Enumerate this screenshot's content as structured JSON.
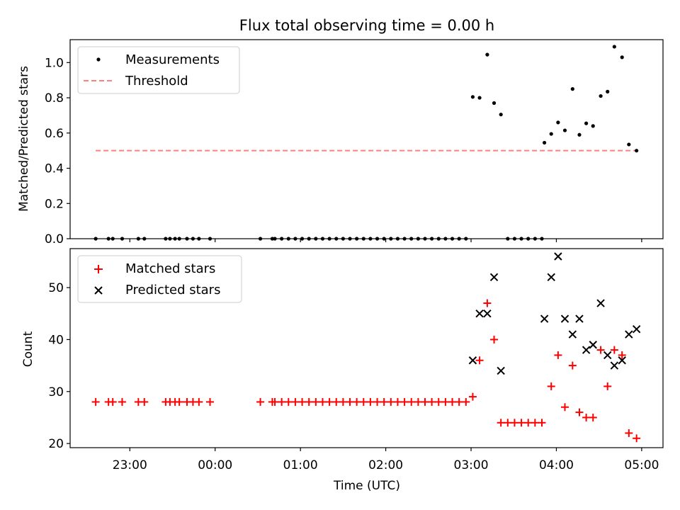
{
  "chart_data": [
    {
      "type": "scatter",
      "title": "Flux total observing time = 0.00 h",
      "xlabel": "",
      "ylabel": "Matched/Predicted stars",
      "ylim": [
        0.0,
        1.13
      ],
      "yticks": [
        "0.0",
        "0.2",
        "0.4",
        "0.6",
        "0.8",
        "1.0"
      ],
      "ytick_values": [
        0.0,
        0.2,
        0.4,
        0.6,
        0.8,
        1.0
      ],
      "legend_position": "upper-left",
      "series": [
        {
          "name": "Measurements",
          "marker": "dot",
          "color": "#000000",
          "points": [
            [
              -1.4,
              0
            ],
            [
              -1.25,
              0
            ],
            [
              -1.2,
              0
            ],
            [
              -1.09,
              0
            ],
            [
              -0.9,
              0
            ],
            [
              -0.83,
              0
            ],
            [
              -0.58,
              0
            ],
            [
              -0.53,
              0
            ],
            [
              -0.47,
              0
            ],
            [
              -0.42,
              0
            ],
            [
              -0.33,
              0
            ],
            [
              -0.26,
              0
            ],
            [
              -0.19,
              0
            ],
            [
              -0.06,
              0
            ],
            [
              0.53,
              0
            ],
            [
              0.67,
              0
            ],
            [
              0.7,
              0
            ],
            [
              0.78,
              0
            ],
            [
              0.86,
              0
            ],
            [
              0.94,
              0
            ],
            [
              1.02,
              0
            ],
            [
              1.1,
              0
            ],
            [
              1.18,
              0
            ],
            [
              1.26,
              0
            ],
            [
              1.34,
              0
            ],
            [
              1.42,
              0
            ],
            [
              1.5,
              0
            ],
            [
              1.58,
              0
            ],
            [
              1.66,
              0
            ],
            [
              1.74,
              0
            ],
            [
              1.82,
              0
            ],
            [
              1.9,
              0
            ],
            [
              1.98,
              0
            ],
            [
              2.06,
              0
            ],
            [
              2.14,
              0
            ],
            [
              2.22,
              0
            ],
            [
              2.3,
              0
            ],
            [
              2.38,
              0
            ],
            [
              2.46,
              0
            ],
            [
              2.54,
              0
            ],
            [
              2.62,
              0
            ],
            [
              2.7,
              0
            ],
            [
              2.78,
              0
            ],
            [
              2.86,
              0
            ],
            [
              2.94,
              0
            ],
            [
              3.02,
              0.805
            ],
            [
              3.1,
              0.8
            ],
            [
              3.19,
              1.045
            ],
            [
              3.27,
              0.77
            ],
            [
              3.35,
              0.705
            ],
            [
              3.43,
              0
            ],
            [
              3.51,
              0
            ],
            [
              3.59,
              0
            ],
            [
              3.67,
              0
            ],
            [
              3.75,
              0
            ],
            [
              3.83,
              0
            ],
            [
              3.86,
              0.545
            ],
            [
              3.94,
              0.595
            ],
            [
              4.02,
              0.66
            ],
            [
              4.1,
              0.615
            ],
            [
              4.19,
              0.85
            ],
            [
              4.27,
              0.59
            ],
            [
              4.35,
              0.655
            ],
            [
              4.43,
              0.64
            ],
            [
              4.52,
              0.81
            ],
            [
              4.6,
              0.835
            ],
            [
              4.68,
              1.09
            ],
            [
              4.77,
              1.03
            ],
            [
              4.85,
              0.535
            ],
            [
              4.94,
              0.5
            ]
          ]
        },
        {
          "name": "Threshold",
          "marker": "dashed-line",
          "color": "#ff7f7f",
          "points": [
            [
              -1.4,
              0.5
            ],
            [
              4.94,
              0.5
            ]
          ]
        }
      ]
    },
    {
      "type": "scatter",
      "title": "",
      "xlabel": "Time (UTC)",
      "ylabel": "Count",
      "ylim": [
        19.2,
        57.5
      ],
      "yticks": [
        "20",
        "30",
        "40",
        "50"
      ],
      "ytick_values": [
        20,
        30,
        40,
        50
      ],
      "xlim_hours": [
        -1.7,
        5.25
      ],
      "xticks": [
        "23:00",
        "00:00",
        "01:00",
        "02:00",
        "03:00",
        "04:00",
        "05:00"
      ],
      "xtick_values": [
        -1,
        0,
        1,
        2,
        3,
        4,
        5
      ],
      "legend_position": "upper-left",
      "series": [
        {
          "name": "Matched stars",
          "marker": "plus",
          "color": "#ff0000",
          "points": [
            [
              -1.4,
              28
            ],
            [
              -1.25,
              28
            ],
            [
              -1.2,
              28
            ],
            [
              -1.09,
              28
            ],
            [
              -0.9,
              28
            ],
            [
              -0.83,
              28
            ],
            [
              -0.58,
              28
            ],
            [
              -0.53,
              28
            ],
            [
              -0.47,
              28
            ],
            [
              -0.42,
              28
            ],
            [
              -0.33,
              28
            ],
            [
              -0.26,
              28
            ],
            [
              -0.19,
              28
            ],
            [
              -0.06,
              28
            ],
            [
              0.53,
              28
            ],
            [
              0.67,
              28
            ],
            [
              0.7,
              28
            ],
            [
              0.78,
              28
            ],
            [
              0.86,
              28
            ],
            [
              0.94,
              28
            ],
            [
              1.02,
              28
            ],
            [
              1.1,
              28
            ],
            [
              1.18,
              28
            ],
            [
              1.26,
              28
            ],
            [
              1.34,
              28
            ],
            [
              1.42,
              28
            ],
            [
              1.5,
              28
            ],
            [
              1.58,
              28
            ],
            [
              1.66,
              28
            ],
            [
              1.74,
              28
            ],
            [
              1.82,
              28
            ],
            [
              1.9,
              28
            ],
            [
              1.98,
              28
            ],
            [
              2.06,
              28
            ],
            [
              2.14,
              28
            ],
            [
              2.22,
              28
            ],
            [
              2.3,
              28
            ],
            [
              2.38,
              28
            ],
            [
              2.46,
              28
            ],
            [
              2.54,
              28
            ],
            [
              2.62,
              28
            ],
            [
              2.7,
              28
            ],
            [
              2.78,
              28
            ],
            [
              2.86,
              28
            ],
            [
              2.94,
              28
            ],
            [
              3.02,
              29
            ],
            [
              3.1,
              36
            ],
            [
              3.19,
              47
            ],
            [
              3.27,
              40
            ],
            [
              3.35,
              24
            ],
            [
              3.43,
              24
            ],
            [
              3.51,
              24
            ],
            [
              3.59,
              24
            ],
            [
              3.67,
              24
            ],
            [
              3.75,
              24
            ],
            [
              3.83,
              24
            ],
            [
              3.94,
              31
            ],
            [
              4.02,
              37
            ],
            [
              4.1,
              27
            ],
            [
              4.19,
              35
            ],
            [
              4.27,
              26
            ],
            [
              4.35,
              25
            ],
            [
              4.43,
              25
            ],
            [
              4.52,
              38
            ],
            [
              4.6,
              31
            ],
            [
              4.68,
              38
            ],
            [
              4.77,
              37
            ],
            [
              4.85,
              22
            ],
            [
              4.94,
              21
            ]
          ]
        },
        {
          "name": "Predicted stars",
          "marker": "x",
          "color": "#000000",
          "points": [
            [
              3.02,
              36
            ],
            [
              3.1,
              45
            ],
            [
              3.19,
              45
            ],
            [
              3.27,
              52
            ],
            [
              3.35,
              34
            ],
            [
              3.86,
              44
            ],
            [
              3.94,
              52
            ],
            [
              4.02,
              56
            ],
            [
              4.1,
              44
            ],
            [
              4.19,
              41
            ],
            [
              4.27,
              44
            ],
            [
              4.35,
              38
            ],
            [
              4.43,
              39
            ],
            [
              4.52,
              47
            ],
            [
              4.6,
              37
            ],
            [
              4.68,
              35
            ],
            [
              4.77,
              36
            ],
            [
              4.85,
              41
            ],
            [
              4.94,
              42
            ]
          ]
        }
      ]
    }
  ]
}
